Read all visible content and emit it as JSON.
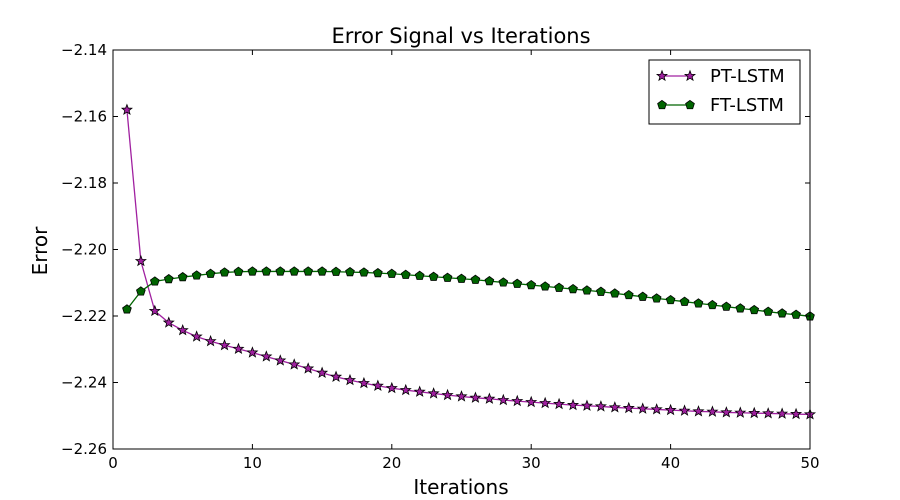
{
  "chart_data": {
    "type": "line",
    "title": "Error Signal vs Iterations",
    "xlabel": "Iterations",
    "ylabel": "Error",
    "xlim": [
      0,
      50
    ],
    "ylim": [
      -2.26,
      -2.14
    ],
    "xticks": [
      0,
      10,
      20,
      30,
      40,
      50
    ],
    "yticks": [
      -2.14,
      -2.16,
      -2.18,
      -2.2,
      -2.22,
      -2.24,
      -2.26
    ],
    "xtick_labels": [
      "0",
      "10",
      "20",
      "30",
      "40",
      "50"
    ],
    "ytick_labels": [
      "−2.14",
      "−2.16",
      "−2.18",
      "−2.20",
      "−2.22",
      "−2.24",
      "−2.26"
    ],
    "grid": false,
    "legend_position": "top-right",
    "x": [
      1,
      2,
      3,
      4,
      5,
      6,
      7,
      8,
      9,
      10,
      11,
      12,
      13,
      14,
      15,
      16,
      17,
      18,
      19,
      20,
      21,
      22,
      23,
      24,
      25,
      26,
      27,
      28,
      29,
      30,
      31,
      32,
      33,
      34,
      35,
      36,
      37,
      38,
      39,
      40,
      41,
      42,
      43,
      44,
      45,
      46,
      47,
      48,
      49,
      50
    ],
    "series": [
      {
        "name": "PT-LSTM",
        "color": "#a020a0",
        "marker": "star",
        "values": [
          -2.158,
          -2.2035,
          -2.2185,
          -2.222,
          -2.2243,
          -2.2262,
          -2.2276,
          -2.2288,
          -2.2299,
          -2.231,
          -2.2322,
          -2.2334,
          -2.2346,
          -2.2358,
          -2.2371,
          -2.2383,
          -2.2393,
          -2.2402,
          -2.241,
          -2.2417,
          -2.2423,
          -2.2428,
          -2.2433,
          -2.2438,
          -2.2442,
          -2.2446,
          -2.2449,
          -2.2453,
          -2.2456,
          -2.2459,
          -2.2462,
          -2.2465,
          -2.2468,
          -2.247,
          -2.2472,
          -2.2475,
          -2.2477,
          -2.2479,
          -2.2481,
          -2.2483,
          -2.2485,
          -2.2487,
          -2.2488,
          -2.249,
          -2.2491,
          -2.2492,
          -2.2493,
          -2.2494,
          -2.2495,
          -2.2496
        ]
      },
      {
        "name": "FT-LSTM",
        "color": "#006400",
        "marker": "pentagon",
        "values": [
          -2.218,
          -2.2126,
          -2.2096,
          -2.2089,
          -2.2083,
          -2.2078,
          -2.2073,
          -2.2069,
          -2.2067,
          -2.2066,
          -2.2066,
          -2.2066,
          -2.2066,
          -2.2066,
          -2.2066,
          -2.2067,
          -2.2068,
          -2.2069,
          -2.2071,
          -2.2073,
          -2.2076,
          -2.2079,
          -2.2082,
          -2.2085,
          -2.2088,
          -2.2091,
          -2.2095,
          -2.2099,
          -2.2103,
          -2.2107,
          -2.2111,
          -2.2115,
          -2.2119,
          -2.2123,
          -2.2127,
          -2.2132,
          -2.2137,
          -2.2142,
          -2.2147,
          -2.2152,
          -2.2157,
          -2.2162,
          -2.2167,
          -2.2172,
          -2.2177,
          -2.2182,
          -2.2187,
          -2.2192,
          -2.2196,
          -2.2201
        ]
      }
    ]
  }
}
